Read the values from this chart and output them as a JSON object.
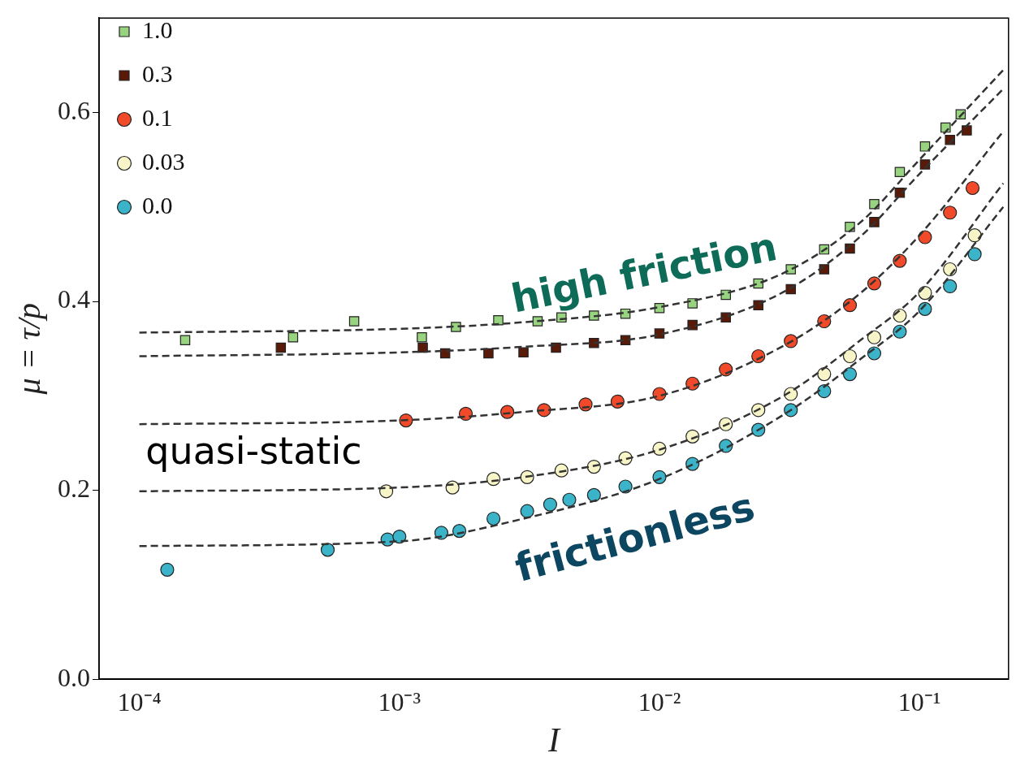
{
  "chart_data": {
    "type": "scatter",
    "xlabel": "I",
    "ylabel": "μ = τ/p",
    "log": "x",
    "xlim": [
      7e-05,
      0.22
    ],
    "ylim": [
      0,
      0.7
    ],
    "xticks": [
      {
        "value": 0.0001,
        "label": "10⁻⁴"
      },
      {
        "value": 0.001,
        "label": "10⁻³"
      },
      {
        "value": 0.01,
        "label": "10⁻²"
      },
      {
        "value": 0.1,
        "label": "10⁻¹"
      }
    ],
    "yticks": [
      {
        "value": 0,
        "label": "0.0"
      },
      {
        "value": 0.2,
        "label": "0.2"
      },
      {
        "value": 0.4,
        "label": "0.4"
      },
      {
        "value": 0.6,
        "label": "0.6"
      }
    ],
    "grid": false,
    "legend": "top left",
    "annotations": [
      "high friction",
      "quasi-static",
      "frictionless"
    ],
    "series": [
      {
        "name": "1.0",
        "color": "#98d47f",
        "marker": "square",
        "x": [
          0.00015,
          0.00039,
          0.00067,
          0.00122,
          0.00165,
          0.0024,
          0.0034,
          0.0042,
          0.0056,
          0.0074,
          0.01,
          0.0134,
          0.018,
          0.024,
          0.032,
          0.043,
          0.054,
          0.067,
          0.084,
          0.105,
          0.126,
          0.144
        ],
        "values": [
          0.359,
          0.362,
          0.379,
          0.362,
          0.373,
          0.38,
          0.379,
          0.383,
          0.385,
          0.387,
          0.393,
          0.398,
          0.407,
          0.419,
          0.434,
          0.455,
          0.479,
          0.503,
          0.537,
          0.564,
          0.584,
          0.598
        ]
      },
      {
        "name": "0.3",
        "color": "#5a1a08",
        "marker": "square",
        "x": [
          0.00035,
          0.00123,
          0.0015,
          0.0022,
          0.003,
          0.004,
          0.0056,
          0.0074,
          0.01,
          0.0134,
          0.018,
          0.024,
          0.032,
          0.043,
          0.054,
          0.067,
          0.084,
          0.105,
          0.131,
          0.152
        ],
        "values": [
          0.351,
          0.351,
          0.345,
          0.345,
          0.346,
          0.351,
          0.356,
          0.359,
          0.366,
          0.375,
          0.383,
          0.396,
          0.413,
          0.434,
          0.456,
          0.484,
          0.515,
          0.545,
          0.571,
          0.581
        ]
      },
      {
        "name": "0.1",
        "color": "#f04a2a",
        "marker": "circle",
        "x": [
          0.00106,
          0.0018,
          0.0026,
          0.0036,
          0.0052,
          0.0069,
          0.01,
          0.0134,
          0.018,
          0.024,
          0.032,
          0.043,
          0.054,
          0.067,
          0.084,
          0.105,
          0.131,
          0.16
        ],
        "values": [
          0.274,
          0.281,
          0.283,
          0.285,
          0.291,
          0.294,
          0.302,
          0.313,
          0.328,
          0.342,
          0.358,
          0.379,
          0.396,
          0.419,
          0.443,
          0.468,
          0.494,
          0.52
        ]
      },
      {
        "name": "0.03",
        "color": "#f7f5c8",
        "marker": "circle",
        "x": [
          0.00089,
          0.0016,
          0.0023,
          0.0031,
          0.0042,
          0.0056,
          0.0074,
          0.01,
          0.0134,
          0.018,
          0.024,
          0.032,
          0.043,
          0.054,
          0.067,
          0.084,
          0.105,
          0.131,
          0.163
        ],
        "values": [
          0.199,
          0.203,
          0.212,
          0.214,
          0.221,
          0.225,
          0.234,
          0.244,
          0.257,
          0.27,
          0.285,
          0.302,
          0.323,
          0.342,
          0.362,
          0.385,
          0.409,
          0.434,
          0.47
        ]
      },
      {
        "name": "0.0",
        "color": "#3bb3c8",
        "marker": "circle",
        "x": [
          0.000128,
          0.00053,
          0.0009,
          0.001,
          0.00145,
          0.0017,
          0.0023,
          0.0031,
          0.0038,
          0.0045,
          0.0056,
          0.0074,
          0.01,
          0.0134,
          0.018,
          0.024,
          0.032,
          0.043,
          0.054,
          0.067,
          0.084,
          0.105,
          0.131,
          0.163
        ],
        "values": [
          0.116,
          0.137,
          0.148,
          0.151,
          0.155,
          0.157,
          0.17,
          0.178,
          0.185,
          0.19,
          0.195,
          0.204,
          0.214,
          0.228,
          0.247,
          0.264,
          0.285,
          0.305,
          0.323,
          0.345,
          0.368,
          0.392,
          0.416,
          0.45
        ]
      },
      {
        "type": "line",
        "color": "#333333",
        "marker": "none",
        "line_style": "dashed",
        "x": [
          0.0001,
          0.001,
          0.003,
          0.01,
          0.03,
          0.06,
          0.1,
          0.21
        ],
        "values": [
          0.367,
          0.371,
          0.378,
          0.394,
          0.43,
          0.485,
          0.55,
          0.645
        ]
      },
      {
        "type": "line",
        "color": "#333333",
        "marker": "none",
        "line_style": "dashed",
        "x": [
          0.0001,
          0.001,
          0.003,
          0.01,
          0.03,
          0.06,
          0.1,
          0.21
        ],
        "values": [
          0.342,
          0.346,
          0.352,
          0.365,
          0.41,
          0.47,
          0.535,
          0.625
        ]
      },
      {
        "type": "line",
        "color": "#333333",
        "marker": "none",
        "line_style": "dashed",
        "x": [
          0.0001,
          0.001,
          0.003,
          0.01,
          0.03,
          0.06,
          0.1,
          0.21
        ],
        "values": [
          0.27,
          0.274,
          0.283,
          0.3,
          0.353,
          0.41,
          0.47,
          0.58
        ]
      },
      {
        "type": "line",
        "color": "#333333",
        "marker": "none",
        "line_style": "dashed",
        "x": [
          0.0001,
          0.001,
          0.003,
          0.01,
          0.03,
          0.06,
          0.1,
          0.21
        ],
        "values": [
          0.199,
          0.203,
          0.214,
          0.243,
          0.3,
          0.36,
          0.41,
          0.525
        ]
      },
      {
        "type": "line",
        "color": "#333333",
        "marker": "none",
        "line_style": "dashed",
        "x": [
          0.0001,
          0.001,
          0.003,
          0.01,
          0.03,
          0.06,
          0.1,
          0.21
        ],
        "values": [
          0.141,
          0.146,
          0.17,
          0.212,
          0.28,
          0.34,
          0.39,
          0.5
        ]
      }
    ]
  }
}
